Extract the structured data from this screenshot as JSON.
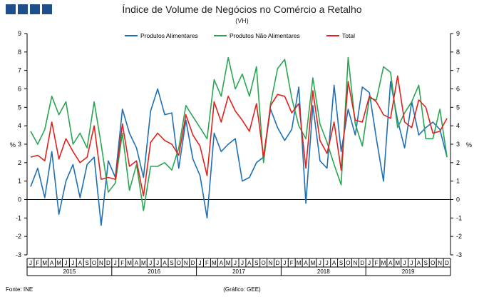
{
  "header": {
    "title": "Índice de Volume de Negócios no Comércio a Retalho",
    "subtitle": "(VH)"
  },
  "axis": {
    "left_unit": "%",
    "right_unit": "%"
  },
  "footer": {
    "source": "Fonte: INE",
    "credit": "(Gráfico: GEE)"
  },
  "chart_data": {
    "type": "line",
    "title": "Índice de Volume de Negócios no Comércio a Retalho",
    "subtitle": "(VH)",
    "ylabel": "%",
    "ylim": [
      -3,
      9
    ],
    "yticks": [
      -3,
      -2,
      -1,
      0,
      1,
      2,
      3,
      4,
      5,
      6,
      7,
      8,
      9
    ],
    "grid": false,
    "legend": "top",
    "month_labels": [
      "J",
      "F",
      "M",
      "A",
      "M",
      "J",
      "J",
      "A",
      "S",
      "O",
      "N",
      "D"
    ],
    "years": [
      "2015",
      "2016",
      "2017",
      "2018",
      "2019"
    ],
    "x": [
      "2015-01",
      "2015-02",
      "2015-03",
      "2015-04",
      "2015-05",
      "2015-06",
      "2015-07",
      "2015-08",
      "2015-09",
      "2015-10",
      "2015-11",
      "2015-12",
      "2016-01",
      "2016-02",
      "2016-03",
      "2016-04",
      "2016-05",
      "2016-06",
      "2016-07",
      "2016-08",
      "2016-09",
      "2016-10",
      "2016-11",
      "2016-12",
      "2017-01",
      "2017-02",
      "2017-03",
      "2017-04",
      "2017-05",
      "2017-06",
      "2017-07",
      "2017-08",
      "2017-09",
      "2017-10",
      "2017-11",
      "2017-12",
      "2018-01",
      "2018-02",
      "2018-03",
      "2018-04",
      "2018-05",
      "2018-06",
      "2018-07",
      "2018-08",
      "2018-09",
      "2018-10",
      "2018-11",
      "2018-12",
      "2019-01",
      "2019-02",
      "2019-03",
      "2019-04",
      "2019-05",
      "2019-06",
      "2019-07",
      "2019-08",
      "2019-09",
      "2019-10",
      "2019-11",
      "2019-12"
    ],
    "series": [
      {
        "name": "Produtos Alimentares",
        "color": "#1f6fb5",
        "values": [
          0.7,
          1.7,
          0.1,
          2.6,
          -0.8,
          1.0,
          1.9,
          0.1,
          1.9,
          2.3,
          -1.4,
          2.1,
          1.2,
          4.9,
          3.6,
          2.8,
          1.2,
          4.8,
          6.0,
          4.6,
          4.7,
          1.7,
          4.3,
          2.2,
          1.3,
          -1.0,
          3.6,
          2.6,
          3.0,
          3.3,
          1.0,
          1.2,
          2.0,
          2.3,
          4.9,
          3.9,
          3.2,
          3.8,
          6.1,
          -0.2,
          5.1,
          2.1,
          1.7,
          6.2,
          2.6,
          4.9,
          3.5,
          6.1,
          5.8,
          3.3,
          1.0,
          6.4,
          4.3,
          2.8,
          5.3,
          3.5,
          3.9,
          4.2,
          3.8,
          2.3
        ]
      },
      {
        "name": "Produtos Não Alimentares",
        "color": "#2aa552",
        "values": [
          3.7,
          3.0,
          3.8,
          5.6,
          4.6,
          5.3,
          3.0,
          3.6,
          2.8,
          5.3,
          3.0,
          0.4,
          0.9,
          3.6,
          0.5,
          1.9,
          -0.6,
          1.8,
          1.8,
          2.0,
          1.6,
          2.8,
          5.1,
          4.5,
          3.9,
          3.3,
          6.5,
          5.6,
          7.7,
          6.0,
          6.8,
          5.6,
          7.2,
          2.0,
          5.2,
          7.1,
          7.6,
          5.5,
          4.0,
          3.3,
          6.6,
          4.1,
          3.1,
          1.9,
          0.8,
          7.7,
          4.1,
          2.9,
          5.5,
          5.4,
          7.2,
          6.9,
          3.9,
          4.7,
          5.3,
          6.2,
          3.3,
          3.3,
          4.9,
          2.3
        ]
      },
      {
        "name": "Total",
        "color": "#e0211d",
        "values": [
          2.3,
          2.4,
          2.1,
          4.2,
          2.2,
          3.3,
          2.6,
          2.0,
          2.3,
          4.0,
          1.1,
          1.2,
          1.1,
          4.1,
          1.8,
          2.1,
          0.2,
          3.1,
          3.6,
          3.2,
          3.0,
          2.4,
          4.6,
          3.5,
          2.9,
          1.3,
          5.3,
          4.2,
          5.6,
          4.8,
          4.3,
          3.7,
          5.2,
          2.3,
          5.1,
          5.7,
          5.6,
          4.7,
          5.2,
          1.7,
          5.9,
          3.2,
          2.5,
          4.2,
          1.6,
          6.4,
          4.3,
          4.2,
          5.6,
          5.3,
          4.6,
          4.4,
          6.7,
          4.2,
          3.9,
          5.4,
          5.0,
          3.6,
          3.7,
          4.4
        ]
      }
    ]
  }
}
